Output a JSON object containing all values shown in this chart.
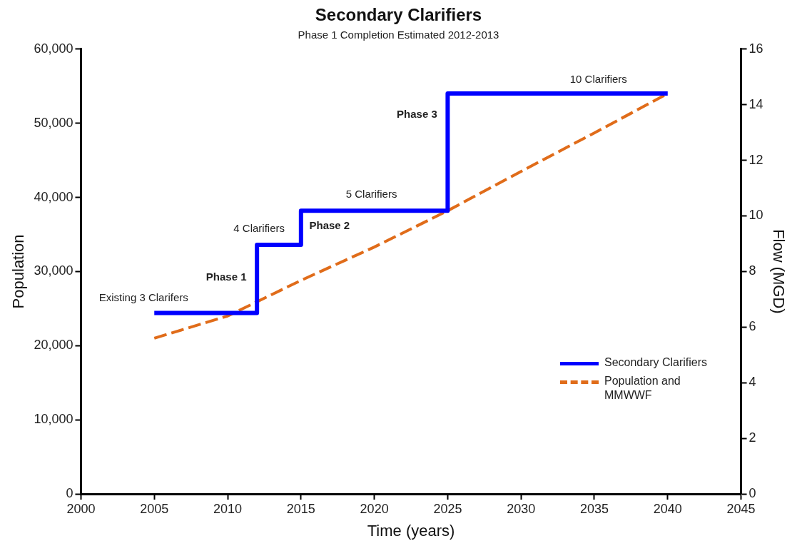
{
  "chart_data": {
    "type": "line",
    "title": "Secondary Clarifiers",
    "subtitle": "Phase 1 Completion Estimated 2012-2013",
    "xlabel": "Time (years)",
    "ylabel": "Population",
    "y2label": "Flow (MGD)",
    "xlim": [
      2000,
      2045
    ],
    "xticks": [
      2000,
      2005,
      2010,
      2015,
      2020,
      2025,
      2030,
      2035,
      2040,
      2045
    ],
    "ylim": [
      0,
      60000
    ],
    "yticks": [
      0,
      {
        "value": 10000,
        "label": "10,000"
      },
      {
        "value": 20000,
        "label": "20,000"
      },
      {
        "value": 30000,
        "label": "30,000"
      },
      {
        "value": 40000,
        "label": "40,000"
      },
      {
        "value": 50000,
        "label": "50,000"
      },
      {
        "value": 60000,
        "label": "60,000"
      }
    ],
    "y2lim": [
      0,
      16
    ],
    "y2ticks": [
      0,
      2,
      4,
      6,
      8,
      10,
      12,
      14,
      16
    ],
    "grid": false,
    "legend": "right",
    "marker": "none",
    "series": [
      {
        "name": "Secondary Clarifiers",
        "type": "step",
        "color": "#0000ff",
        "line_style": "solid",
        "x": [
          2005,
          2012,
          2015,
          2025,
          2040
        ],
        "values": [
          24400,
          33600,
          38200,
          54000,
          54000
        ]
      },
      {
        "name": "Population and MMWWF",
        "color": "#e06c1a",
        "line_style": "dashed",
        "x": [
          2005,
          2010,
          2015,
          2020,
          2025,
          2030,
          2035,
          2040
        ],
        "values": [
          21000,
          24000,
          28800,
          33300,
          38200,
          43500,
          48700,
          54000
        ]
      }
    ],
    "annotations": [
      "Existing 3 Clarifers",
      "Phase 1",
      "4 Clarifiers",
      "Phase 2",
      "5 Clarifiers",
      "Phase 3",
      "10 Clarifiers"
    ]
  }
}
